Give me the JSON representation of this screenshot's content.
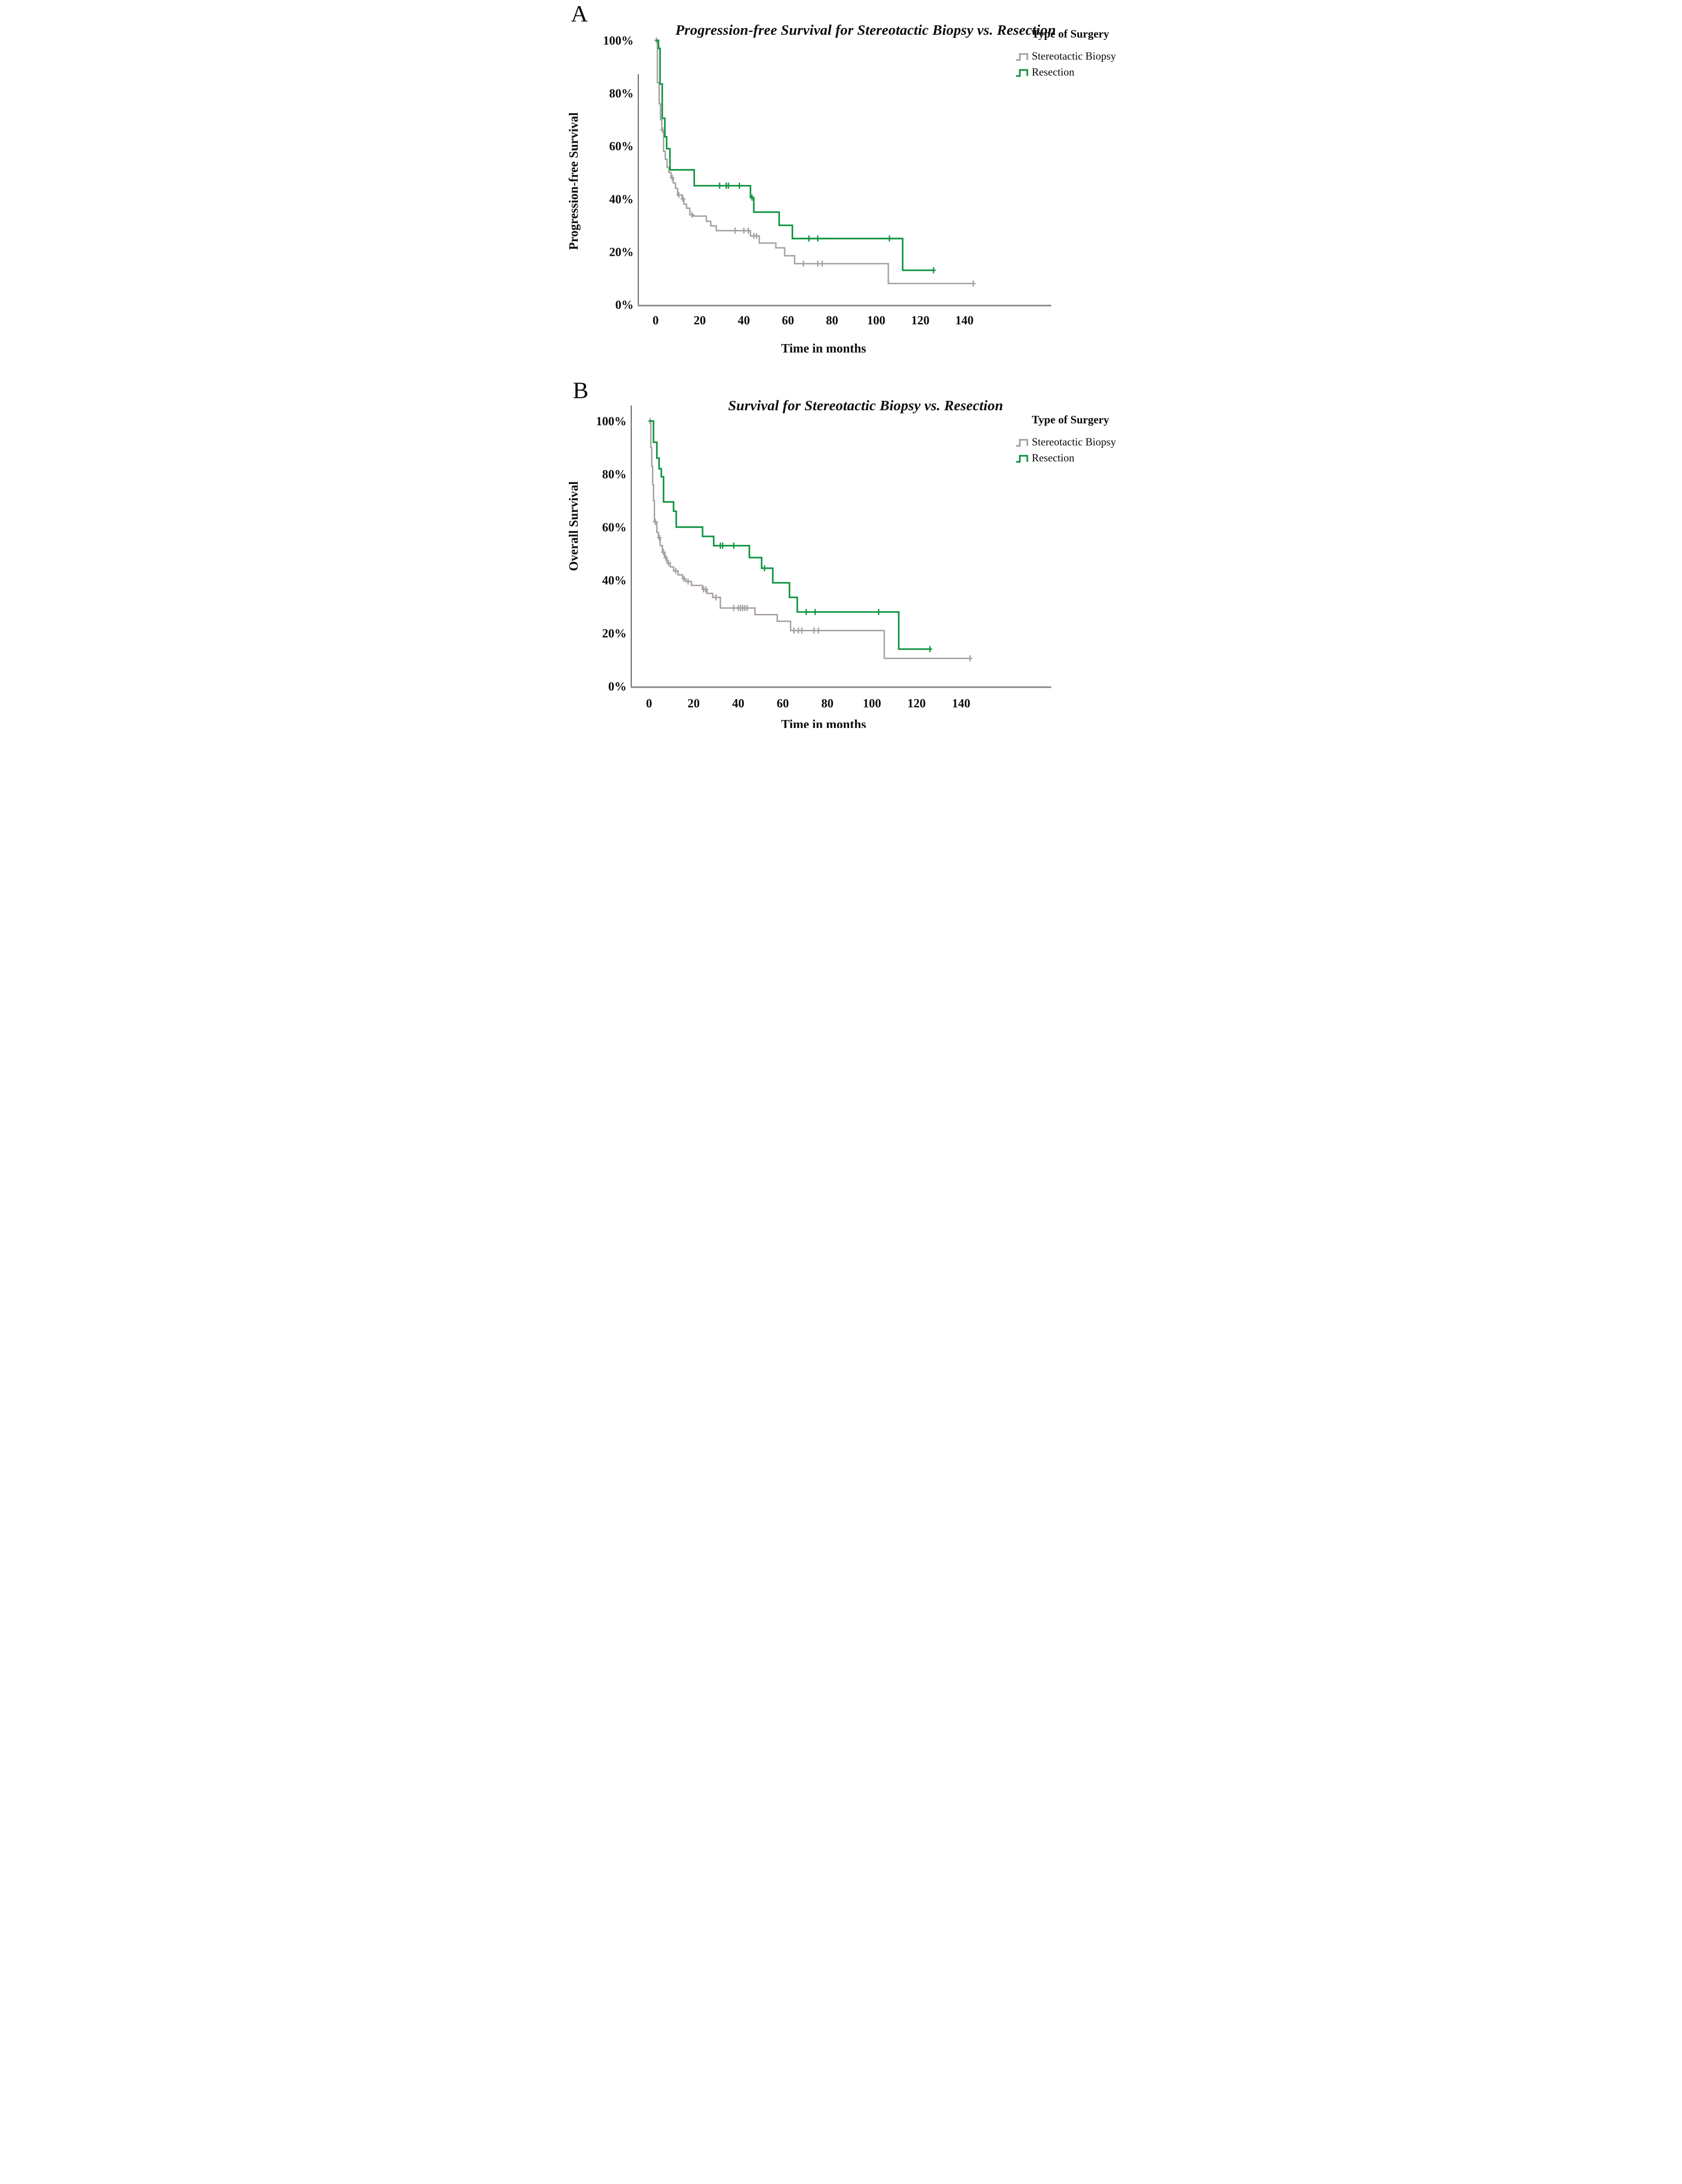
{
  "figure": {
    "background": "#ffffff"
  },
  "legend": {
    "title": "Type of Surgery",
    "items": [
      {
        "label": "Stereotactic Biopsy",
        "color": "#a7a09d"
      },
      {
        "label": "Resection",
        "color": "#109540"
      }
    ]
  },
  "panels": [
    {
      "corner_label": "A",
      "title": "Progression-free Survival for Stereotactic Biopsy vs. Resection",
      "y_axis_title": "Progression-free Survival",
      "x_axis_title": "Time in months"
    },
    {
      "corner_label": "B",
      "title": "Survival for Stereotactic Biopsy vs. Resection",
      "y_axis_title": "Overall Survival",
      "x_axis_title": "Time in months"
    }
  ],
  "chart_data": [
    {
      "type": "line",
      "subtype": "kaplan_meier_step",
      "title": "Progression-free Survival for Stereotactic Biopsy vs. Resection",
      "xlabel": "Time in months",
      "ylabel": "Progression-free Survival",
      "xlim": [
        0,
        155
      ],
      "ylim": [
        0,
        100
      ],
      "grid": false,
      "legend_position": "top-right",
      "x_ticks": [
        0,
        20,
        40,
        60,
        80,
        100,
        120,
        140
      ],
      "y_ticks": [
        {
          "label": "100%",
          "value": 100
        },
        {
          "label": "80%",
          "value": 80
        },
        {
          "label": "60%",
          "value": 60
        },
        {
          "label": "40%",
          "value": 40
        },
        {
          "label": "20%",
          "value": 20
        },
        {
          "label": "0%",
          "value": 0
        }
      ],
      "series": [
        {
          "name": "Stereotactic Biopsy",
          "color": "#a7a09d",
          "width": 3,
          "steps": [
            [
              0,
              100
            ],
            [
              0.8,
              84
            ],
            [
              1.6,
              76
            ],
            [
              2.2,
              70
            ],
            [
              2.8,
              66
            ],
            [
              3.6,
              58
            ],
            [
              4.4,
              55
            ],
            [
              5.2,
              52
            ],
            [
              6,
              50
            ],
            [
              7,
              48
            ],
            [
              8,
              46
            ],
            [
              9,
              44
            ],
            [
              10,
              41.5
            ],
            [
              12,
              40
            ],
            [
              12.8,
              38
            ],
            [
              14,
              36.5
            ],
            [
              15.5,
              34
            ],
            [
              17,
              33.5
            ],
            [
              23,
              31.5
            ],
            [
              25,
              29.8
            ],
            [
              27.5,
              28
            ],
            [
              43,
              26
            ],
            [
              47,
              23.3
            ],
            [
              54.5,
              21.5
            ],
            [
              58.5,
              18.5
            ],
            [
              63,
              15.5
            ],
            [
              105.5,
              8
            ]
          ],
          "end": 144,
          "censors": [
            [
              0.4,
              100
            ],
            [
              3.2,
              66
            ],
            [
              7.5,
              48
            ],
            [
              10.5,
              41.5
            ],
            [
              12.4,
              40
            ],
            [
              16.5,
              34
            ],
            [
              36,
              28
            ],
            [
              40,
              28
            ],
            [
              42,
              28
            ],
            [
              44.5,
              26
            ],
            [
              45.7,
              26
            ],
            [
              67,
              15.5
            ],
            [
              73.5,
              15.5
            ],
            [
              75.5,
              15.5
            ],
            [
              144,
              8
            ]
          ]
        },
        {
          "name": "Resection",
          "color": "#109540",
          "width": 3.4,
          "steps": [
            [
              0,
              100
            ],
            [
              1.3,
              97
            ],
            [
              2,
              83.5
            ],
            [
              3,
              70.5
            ],
            [
              4.2,
              63.5
            ],
            [
              5,
              59
            ],
            [
              6.5,
              51
            ],
            [
              17.5,
              45
            ],
            [
              43,
              40.5
            ],
            [
              44.5,
              35
            ],
            [
              56,
              30
            ],
            [
              62,
              25
            ],
            [
              112,
              13
            ]
          ],
          "end": 126,
          "censors": [
            [
              29,
              45
            ],
            [
              32,
              45
            ],
            [
              33,
              45
            ],
            [
              38,
              45
            ],
            [
              43.7,
              40.5
            ],
            [
              69.5,
              25
            ],
            [
              73.5,
              25
            ],
            [
              106,
              25
            ],
            [
              126,
              13
            ]
          ]
        }
      ]
    },
    {
      "type": "line",
      "subtype": "kaplan_meier_step",
      "title": "Survival for Stereotactic Biopsy vs. Resection",
      "xlabel": "Time in months",
      "ylabel": "Overall Survival",
      "xlim": [
        0,
        155
      ],
      "ylim": [
        0,
        100
      ],
      "grid": false,
      "legend_position": "top-right",
      "x_ticks": [
        0,
        20,
        40,
        60,
        80,
        100,
        120,
        140
      ],
      "y_ticks": [
        {
          "label": "100%",
          "value": 100
        },
        {
          "label": "80%",
          "value": 80
        },
        {
          "label": "60%",
          "value": 60
        },
        {
          "label": "40%",
          "value": 40
        },
        {
          "label": "20%",
          "value": 20
        },
        {
          "label": "0%",
          "value": 0
        }
      ],
      "series": [
        {
          "name": "Stereotactic Biopsy",
          "color": "#a7a09d",
          "width": 3,
          "steps": [
            [
              0,
              100
            ],
            [
              0.8,
              90
            ],
            [
              1.2,
              83
            ],
            [
              1.6,
              76
            ],
            [
              2,
              70
            ],
            [
              2.4,
              62
            ],
            [
              3.5,
              58
            ],
            [
              4.2,
              56
            ],
            [
              5,
              53
            ],
            [
              6,
              50.5
            ],
            [
              7,
              48.5
            ],
            [
              8,
              46.5
            ],
            [
              9.5,
              45
            ],
            [
              11,
              43.5
            ],
            [
              13,
              42
            ],
            [
              15,
              40.5
            ],
            [
              16.5,
              39.5
            ],
            [
              19,
              38
            ],
            [
              24,
              36.5
            ],
            [
              26,
              35
            ],
            [
              28.5,
              33.5
            ],
            [
              32,
              29.5
            ],
            [
              47.5,
              27
            ],
            [
              57.5,
              24.5
            ],
            [
              63.5,
              21
            ],
            [
              105.5,
              10.5
            ]
          ],
          "end": 144,
          "censors": [
            [
              0.5,
              100
            ],
            [
              2.8,
              62
            ],
            [
              4.6,
              56
            ],
            [
              6.5,
              50.5
            ],
            [
              7.5,
              48.5
            ],
            [
              8.7,
              46.5
            ],
            [
              12,
              43.5
            ],
            [
              15.7,
              40.5
            ],
            [
              17.5,
              39.5
            ],
            [
              24.5,
              36.5
            ],
            [
              25.5,
              36.5
            ],
            [
              30,
              33.5
            ],
            [
              38,
              29.5
            ],
            [
              40,
              29.5
            ],
            [
              41,
              29.5
            ],
            [
              42,
              29.5
            ],
            [
              43,
              29.5
            ],
            [
              44,
              29.5
            ],
            [
              65,
              21
            ],
            [
              67,
              21
            ],
            [
              68.5,
              21
            ],
            [
              74,
              21
            ],
            [
              76,
              21
            ],
            [
              144,
              10.5
            ]
          ]
        },
        {
          "name": "Resection",
          "color": "#109540",
          "width": 3.4,
          "steps": [
            [
              0,
              100
            ],
            [
              2,
              92
            ],
            [
              3.5,
              86
            ],
            [
              4.5,
              82
            ],
            [
              5.5,
              79
            ],
            [
              6.5,
              69.5
            ],
            [
              11,
              66
            ],
            [
              12.2,
              60
            ],
            [
              24,
              56.5
            ],
            [
              29,
              53
            ],
            [
              45,
              48.5
            ],
            [
              50.5,
              44.5
            ],
            [
              55.5,
              39
            ],
            [
              63,
              33.5
            ],
            [
              66.5,
              28
            ],
            [
              112,
              14
            ]
          ],
          "end": 126.5,
          "censors": [
            [
              32,
              53
            ],
            [
              33,
              53
            ],
            [
              38,
              53
            ],
            [
              51.8,
              44.5
            ],
            [
              70.5,
              28
            ],
            [
              74.5,
              28
            ],
            [
              103,
              28
            ],
            [
              126,
              14
            ]
          ]
        }
      ]
    }
  ]
}
